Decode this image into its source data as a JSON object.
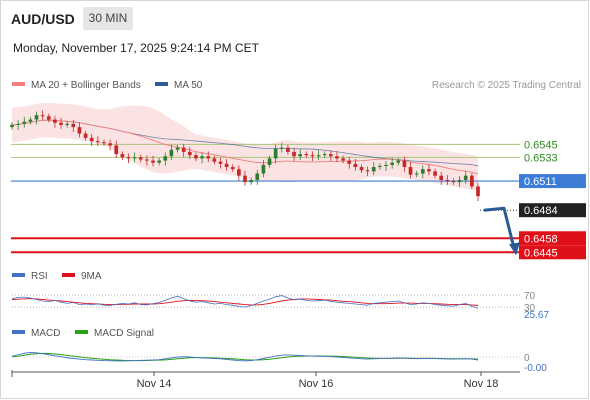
{
  "header": {
    "symbol": "AUD/USD",
    "interval": "30 MIN",
    "datetime": "Monday, November 17, 2025 9:24:14 PM CET",
    "credit": "Research © 2025 Trading Central"
  },
  "colors": {
    "ma20": "#f27e7e",
    "ma50": "#2c5a93",
    "bollinger_fill": "#fcdede",
    "candle_up": "#2e7d2e",
    "candle_down": "#c62828",
    "resistance": "#a8c47a",
    "pivot": "#3d7dd8",
    "support": "#e0101a",
    "rsi": "#4472c4",
    "rsi_ma": "#e0101a",
    "macd": "#4472c4",
    "macd_signal": "#2aa01a",
    "arrow": "#2c5a93"
  },
  "chart_data": [
    {
      "type": "candlestick",
      "panel": "price",
      "legend": [
        {
          "name": "MA 20 + Bollinger Bands",
          "color": "#f27e7e"
        },
        {
          "name": "MA 50",
          "color": "#2c5a93"
        }
      ],
      "x_ticks": [
        "Nov 14",
        "Nov 16",
        "Nov 18"
      ],
      "ylim": [
        0.6436,
        0.6575
      ],
      "close": [
        0.6563,
        0.6564,
        0.6566,
        0.6568,
        0.6572,
        0.6571,
        0.6568,
        0.6565,
        0.6563,
        0.6564,
        0.6561,
        0.6555,
        0.6551,
        0.6548,
        0.6547,
        0.6546,
        0.6544,
        0.6536,
        0.6533,
        0.6532,
        0.6533,
        0.6531,
        0.653,
        0.6528,
        0.653,
        0.6534,
        0.654,
        0.6542,
        0.6538,
        0.6535,
        0.6532,
        0.6534,
        0.6532,
        0.6529,
        0.6527,
        0.6524,
        0.6522,
        0.6516,
        0.651,
        0.6512,
        0.6518,
        0.6526,
        0.6532,
        0.6541,
        0.6542,
        0.6538,
        0.6534,
        0.6536,
        0.6535,
        0.6534,
        0.6535,
        0.6536,
        0.6534,
        0.6532,
        0.653,
        0.6527,
        0.6524,
        0.6521,
        0.652,
        0.6524,
        0.6525,
        0.6526,
        0.6528,
        0.653,
        0.6524,
        0.6517,
        0.6518,
        0.6522,
        0.652,
        0.6516,
        0.6512,
        0.6511,
        0.651,
        0.6512,
        0.6516,
        0.6506,
        0.6497
      ],
      "last_price": 0.6484,
      "levels": [
        {
          "value": "0.6545",
          "price": 0.6545,
          "kind": "resistance"
        },
        {
          "value": "0.6533",
          "price": 0.6533,
          "kind": "resistance"
        },
        {
          "value": "0.6511",
          "price": 0.6511,
          "kind": "pivot"
        },
        {
          "value": "0.6484",
          "price": 0.6484,
          "kind": "last"
        },
        {
          "value": "0.6458",
          "price": 0.6458,
          "kind": "support"
        },
        {
          "value": "0.6445",
          "price": 0.6445,
          "kind": "support"
        }
      ],
      "forecast": "down"
    },
    {
      "type": "line",
      "panel": "rsi",
      "series": [
        {
          "name": "RSI"
        },
        {
          "name": "9MA"
        }
      ],
      "levels": [
        {
          "value": "70",
          "y": 70
        },
        {
          "value": "30",
          "y": 30
        }
      ],
      "last_value": "25.67",
      "ylim": [
        0,
        100
      ],
      "rsi": [
        58,
        62,
        63,
        60,
        55,
        50,
        48,
        52,
        46,
        42,
        45,
        38,
        40,
        37,
        41,
        36,
        35,
        39,
        42,
        40,
        44,
        38,
        37,
        41,
        45,
        52,
        60,
        66,
        58,
        50,
        46,
        48,
        44,
        40,
        42,
        38,
        36,
        32,
        30,
        35,
        42,
        50,
        56,
        64,
        68,
        60,
        54,
        56,
        52,
        50,
        51,
        53,
        49,
        46,
        44,
        42,
        40,
        38,
        36,
        42,
        44,
        46,
        48,
        50,
        44,
        38,
        40,
        44,
        42,
        38,
        36,
        34,
        33,
        38,
        42,
        32,
        25.67
      ],
      "ma9": [
        55,
        56,
        57,
        58,
        57,
        55,
        53,
        52,
        50,
        48,
        46,
        44,
        42,
        41,
        40,
        39,
        38,
        38,
        39,
        39,
        40,
        40,
        40,
        40,
        41,
        43,
        46,
        49,
        51,
        52,
        52,
        51,
        50,
        48,
        46,
        44,
        42,
        40,
        38,
        37,
        37,
        39,
        42,
        46,
        50,
        53,
        55,
        57,
        57,
        56,
        55,
        54,
        53,
        51,
        49,
        48,
        46,
        44,
        42,
        41,
        41,
        41,
        42,
        43,
        43,
        43,
        42,
        42,
        42,
        41,
        40,
        39,
        38,
        38,
        38,
        37,
        35
      ]
    },
    {
      "type": "line",
      "panel": "macd",
      "series": [
        {
          "name": "MACD"
        },
        {
          "name": "MACD Signal"
        }
      ],
      "levels": [
        {
          "value": "0",
          "y": 0
        }
      ],
      "last_value": "-0.00",
      "ylim": [
        -1,
        1
      ],
      "macd": [
        0.05,
        0.15,
        0.25,
        0.3,
        0.28,
        0.22,
        0.15,
        0.08,
        0.02,
        -0.05,
        -0.1,
        -0.14,
        -0.18,
        -0.2,
        -0.22,
        -0.24,
        -0.25,
        -0.26,
        -0.26,
        -0.25,
        -0.24,
        -0.22,
        -0.21,
        -0.2,
        -0.18,
        -0.12,
        -0.06,
        0.0,
        0.02,
        0.0,
        -0.04,
        -0.06,
        -0.08,
        -0.1,
        -0.12,
        -0.16,
        -0.2,
        -0.24,
        -0.26,
        -0.24,
        -0.18,
        -0.1,
        -0.02,
        0.06,
        0.12,
        0.14,
        0.12,
        0.1,
        0.08,
        0.06,
        0.05,
        0.05,
        0.03,
        0.0,
        -0.03,
        -0.06,
        -0.09,
        -0.12,
        -0.14,
        -0.12,
        -0.1,
        -0.09,
        -0.08,
        -0.06,
        -0.07,
        -0.1,
        -0.11,
        -0.1,
        -0.09,
        -0.1,
        -0.12,
        -0.13,
        -0.14,
        -0.13,
        -0.11,
        -0.14,
        -0.2
      ],
      "signal": [
        0.02,
        0.06,
        0.12,
        0.18,
        0.22,
        0.24,
        0.23,
        0.2,
        0.16,
        0.11,
        0.06,
        0.01,
        -0.04,
        -0.08,
        -0.12,
        -0.15,
        -0.18,
        -0.2,
        -0.22,
        -0.23,
        -0.24,
        -0.24,
        -0.23,
        -0.22,
        -0.21,
        -0.19,
        -0.16,
        -0.12,
        -0.08,
        -0.05,
        -0.04,
        -0.04,
        -0.05,
        -0.06,
        -0.08,
        -0.1,
        -0.12,
        -0.15,
        -0.18,
        -0.2,
        -0.2,
        -0.18,
        -0.15,
        -0.1,
        -0.05,
        0.0,
        0.04,
        0.06,
        0.07,
        0.07,
        0.07,
        0.06,
        0.06,
        0.05,
        0.03,
        0.01,
        -0.02,
        -0.04,
        -0.07,
        -0.08,
        -0.09,
        -0.09,
        -0.09,
        -0.08,
        -0.08,
        -0.08,
        -0.09,
        -0.09,
        -0.09,
        -0.09,
        -0.1,
        -0.11,
        -0.12,
        -0.12,
        -0.12,
        -0.12,
        -0.14
      ]
    }
  ]
}
